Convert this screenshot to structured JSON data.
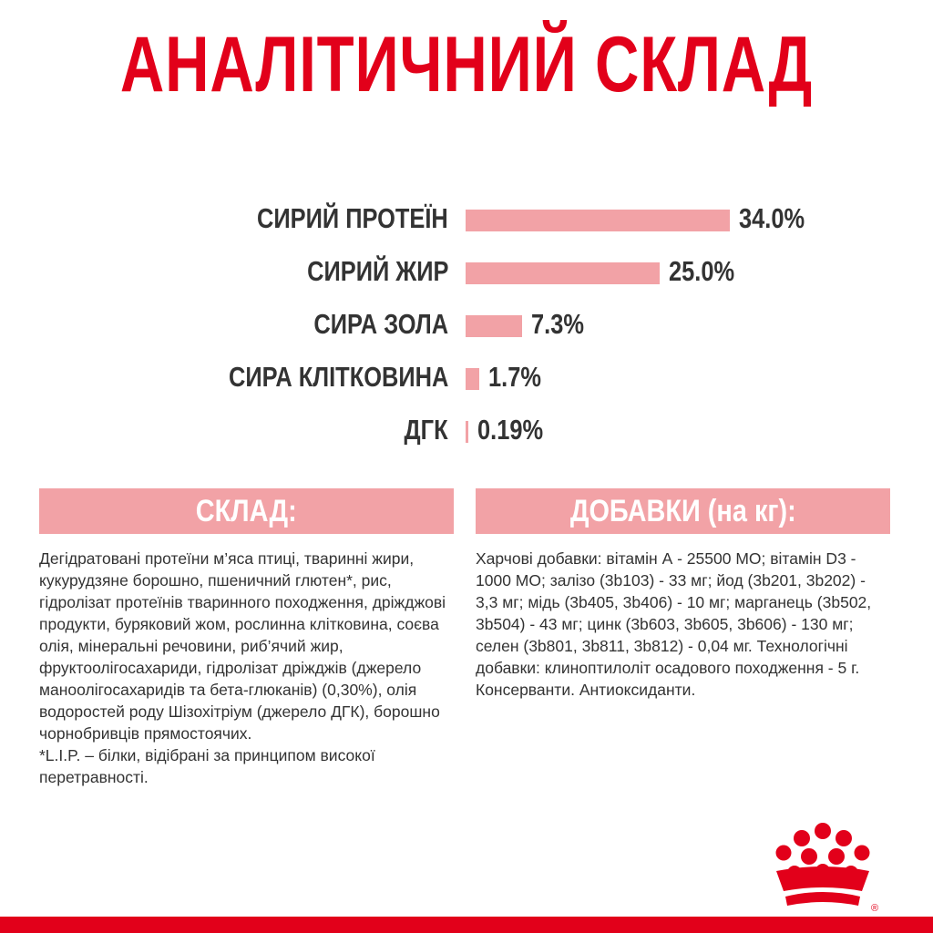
{
  "title": "АНАЛІТИЧНИЙ СКЛАД",
  "colors": {
    "brand_red": "#e2001a",
    "bar_pink": "#f2a2a6",
    "text": "#333333"
  },
  "chart_data": {
    "type": "bar",
    "orientation": "horizontal",
    "categories": [
      "СИРИЙ ПРОТЕЇН",
      "СИРИЙ ЖИР",
      "СИРА ЗОЛА",
      "СИРА КЛІТКОВИНА",
      "ДГК"
    ],
    "values": [
      34.0,
      25.0,
      7.3,
      1.7,
      0.19
    ],
    "value_labels": [
      "34.0%",
      "25.0%",
      "7.3%",
      "1.7%",
      "0.19%"
    ],
    "unit": "%",
    "xlim": [
      0,
      34.0
    ],
    "grid": false,
    "legend": "none"
  },
  "composition": {
    "header": "СКЛАД:",
    "paragraphs": [
      "Дегідратовані протеїни м’яса птиці, тваринні жири, кукурудзяне борошно, пшеничний глютен*, рис, гідролізат протеїнів тваринного походження, дріжджові продукти, буряковий жом, рослинна клітковина, соєва олія, мінеральні речовини, риб’ячий жир, фруктоолігосахариди, гідролізат дріжджів (джерело маноолігосахаридів та бета-глюканів) (0,30%), олія водоростей роду Шізохітріум (джерело ДГК), борошно чорнобривців прямостоячих.",
      "*L.I.P. – білки, відібрані за принципом високої перетравності."
    ]
  },
  "additives": {
    "header": "ДОБАВКИ (на кг):",
    "text": "Харчові добавки: вітамін А - 25500 МО; вітамін D3 - 1000 МО; залізо (3b103) - 33 мг; йод (3b201, 3b202) - 3,3 мг; мідь (3b405, 3b406) - 10 мг; марганець (3b502, 3b504) - 43 мг; цинк (3b603, 3b605, 3b606) - 130 мг; селен (3b801, 3b811, 3b812) - 0,04 мг. Технологічні добавки: клиноптилоліт осадового походження - 5 г. Консерванти. Антиоксиданти."
  },
  "logo": {
    "icon": "crown-logo-icon",
    "mark": "®"
  }
}
